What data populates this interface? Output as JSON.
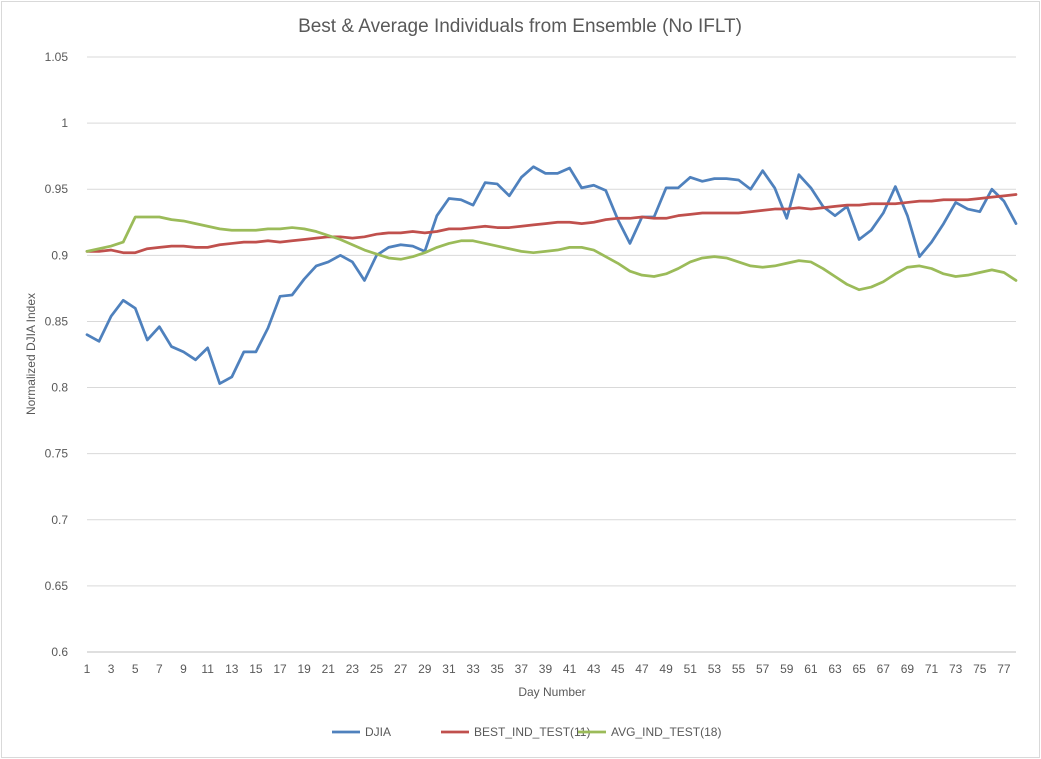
{
  "chart_data": {
    "type": "line",
    "title": "Best & Average Individuals from Ensemble (No IFLT)",
    "xlabel": "Day Number",
    "ylabel": "Normalized DJIA Index",
    "ylim": [
      0.6,
      1.05
    ],
    "yticks": [
      0.6,
      0.65,
      0.7,
      0.75,
      0.8,
      0.85,
      0.9,
      0.95,
      1,
      1.05
    ],
    "ytick_labels": [
      "0.6",
      "0.65",
      "0.7",
      "0.75",
      "0.8",
      "0.85",
      "0.9",
      "0.95",
      "1",
      "1.05"
    ],
    "xticks": [
      1,
      3,
      5,
      7,
      9,
      11,
      13,
      15,
      17,
      19,
      21,
      23,
      25,
      27,
      29,
      31,
      33,
      35,
      37,
      39,
      41,
      43,
      45,
      47,
      49,
      51,
      53,
      55,
      57,
      59,
      61,
      63,
      65,
      67,
      69,
      71,
      73,
      75,
      77
    ],
    "xlim": [
      1,
      78
    ],
    "grid": "horizontal",
    "legend_position": "bottom",
    "series": [
      {
        "name": "DJIA",
        "color": "#4f81bd",
        "values": [
          0.84,
          0.835,
          0.854,
          0.866,
          0.86,
          0.836,
          0.846,
          0.831,
          0.827,
          0.821,
          0.83,
          0.803,
          0.808,
          0.827,
          0.827,
          0.845,
          0.869,
          0.87,
          0.882,
          0.892,
          0.895,
          0.9,
          0.895,
          0.881,
          0.9,
          0.906,
          0.908,
          0.907,
          0.903,
          0.93,
          0.943,
          0.942,
          0.938,
          0.955,
          0.954,
          0.945,
          0.959,
          0.967,
          0.962,
          0.962,
          0.966,
          0.951,
          0.953,
          0.949,
          0.927,
          0.909,
          0.929,
          0.929,
          0.951,
          0.951,
          0.959,
          0.956,
          0.958,
          0.958,
          0.957,
          0.95,
          0.964,
          0.951,
          0.928,
          0.961,
          0.951,
          0.937,
          0.93,
          0.937,
          0.912,
          0.919,
          0.932,
          0.952,
          0.93,
          0.899,
          0.91,
          0.924,
          0.94,
          0.935,
          0.933,
          0.95,
          0.941,
          0.924
        ]
      },
      {
        "name": "BEST_IND_TEST(11)",
        "color": "#c0504d",
        "values": [
          0.903,
          0.903,
          0.904,
          0.902,
          0.902,
          0.905,
          0.906,
          0.907,
          0.907,
          0.906,
          0.906,
          0.908,
          0.909,
          0.91,
          0.91,
          0.911,
          0.91,
          0.911,
          0.912,
          0.913,
          0.914,
          0.914,
          0.913,
          0.914,
          0.916,
          0.917,
          0.917,
          0.918,
          0.917,
          0.918,
          0.92,
          0.92,
          0.921,
          0.922,
          0.921,
          0.921,
          0.922,
          0.923,
          0.924,
          0.925,
          0.925,
          0.924,
          0.925,
          0.927,
          0.928,
          0.928,
          0.929,
          0.928,
          0.928,
          0.93,
          0.931,
          0.932,
          0.932,
          0.932,
          0.932,
          0.933,
          0.934,
          0.935,
          0.935,
          0.936,
          0.935,
          0.936,
          0.937,
          0.938,
          0.938,
          0.939,
          0.939,
          0.939,
          0.94,
          0.941,
          0.941,
          0.942,
          0.942,
          0.942,
          0.943,
          0.944,
          0.945,
          0.946
        ]
      },
      {
        "name": "AVG_IND_TEST(18)",
        "color": "#9bbb59",
        "values": [
          0.903,
          0.905,
          0.907,
          0.91,
          0.929,
          0.929,
          0.929,
          0.927,
          0.926,
          0.924,
          0.922,
          0.92,
          0.919,
          0.919,
          0.919,
          0.92,
          0.92,
          0.921,
          0.92,
          0.918,
          0.915,
          0.912,
          0.908,
          0.904,
          0.901,
          0.898,
          0.897,
          0.899,
          0.902,
          0.906,
          0.909,
          0.911,
          0.911,
          0.909,
          0.907,
          0.905,
          0.903,
          0.902,
          0.903,
          0.904,
          0.906,
          0.906,
          0.904,
          0.899,
          0.894,
          0.888,
          0.885,
          0.884,
          0.886,
          0.89,
          0.895,
          0.898,
          0.899,
          0.898,
          0.895,
          0.892,
          0.891,
          0.892,
          0.894,
          0.896,
          0.895,
          0.89,
          0.884,
          0.878,
          0.874,
          0.876,
          0.88,
          0.886,
          0.891,
          0.892,
          0.89,
          0.886,
          0.884,
          0.885,
          0.887,
          0.889,
          0.887,
          0.881
        ]
      }
    ]
  }
}
